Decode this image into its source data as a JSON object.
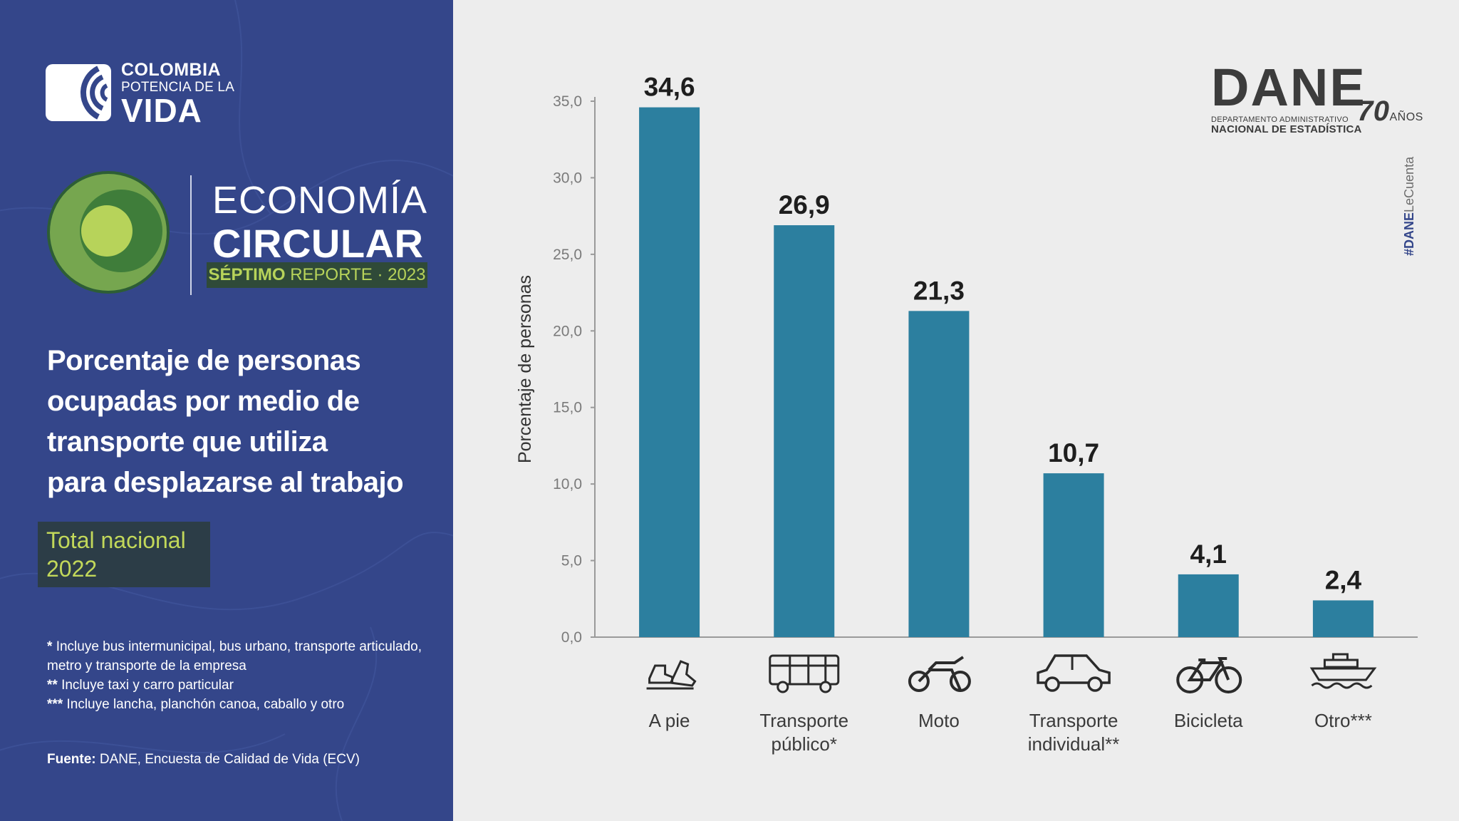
{
  "branding": {
    "colombia": {
      "line1": "COLOMBIA",
      "line2": "POTENCIA DE LA",
      "line3": "VIDA"
    },
    "report": {
      "title1": "ECONOMÍA",
      "title2": "CIRCULAR",
      "badge_bold": "SÉPTIMO",
      "badge_rest": "REPORTE · 2023"
    },
    "dane": {
      "word": "DANE",
      "subtitle1": "DEPARTAMENTO ADMINISTRATIVO",
      "subtitle2": "NACIONAL DE ESTADÍSTICA",
      "years_number": "70",
      "years_label": "AÑOS"
    },
    "hashtag_bold": "#DANE",
    "hashtag_rest": "LeCuenta"
  },
  "heading": {
    "lines": [
      "Porcentaje de personas",
      "ocupadas por medio de",
      "transporte que utiliza",
      "para desplazarse al trabajo"
    ]
  },
  "scope": {
    "line1": "Total nacional",
    "line2": "2022"
  },
  "notes": [
    {
      "mark": "*",
      "text": "Incluye bus intermunicipal, bus urbano, transporte articulado,"
    },
    {
      "mark": "",
      "text": "metro y transporte de la empresa"
    },
    {
      "mark": "**",
      "text": "Incluye taxi y carro particular"
    },
    {
      "mark": "***",
      "text": "Incluye lancha, planchón canoa, caballo y otro"
    }
  ],
  "source": {
    "label": "Fuente:",
    "text": "DANE, Encuesta de Calidad de Vida (ECV)"
  },
  "colors": {
    "bar": "#2c7f9f",
    "left_panel": "#34468a",
    "accent": "#b7d35a"
  },
  "chart_data": {
    "type": "bar",
    "ylabel": "Porcentaje de personas",
    "ylim": [
      0,
      35
    ],
    "yticks": [
      0,
      5,
      10,
      15,
      20,
      25,
      30,
      35
    ],
    "ytick_labels": [
      "0,0",
      "5,0",
      "10,0",
      "15,0",
      "20,0",
      "25,0",
      "30,0",
      "35,0"
    ],
    "categories": [
      {
        "lines": [
          "A pie"
        ],
        "icon": "walking-shoes-icon"
      },
      {
        "lines": [
          "Transporte",
          "público*"
        ],
        "icon": "bus-icon"
      },
      {
        "lines": [
          "Moto"
        ],
        "icon": "motorcycle-icon"
      },
      {
        "lines": [
          "Transporte",
          "individual**"
        ],
        "icon": "car-icon"
      },
      {
        "lines": [
          "Bicicleta"
        ],
        "icon": "bicycle-icon"
      },
      {
        "lines": [
          "Otro***"
        ],
        "icon": "boat-icon"
      }
    ],
    "values": [
      34.6,
      26.9,
      21.3,
      10.7,
      4.1,
      2.4
    ],
    "value_labels": [
      "34,6",
      "26,9",
      "21,3",
      "10,7",
      "4,1",
      "2,4"
    ],
    "grid": false
  }
}
